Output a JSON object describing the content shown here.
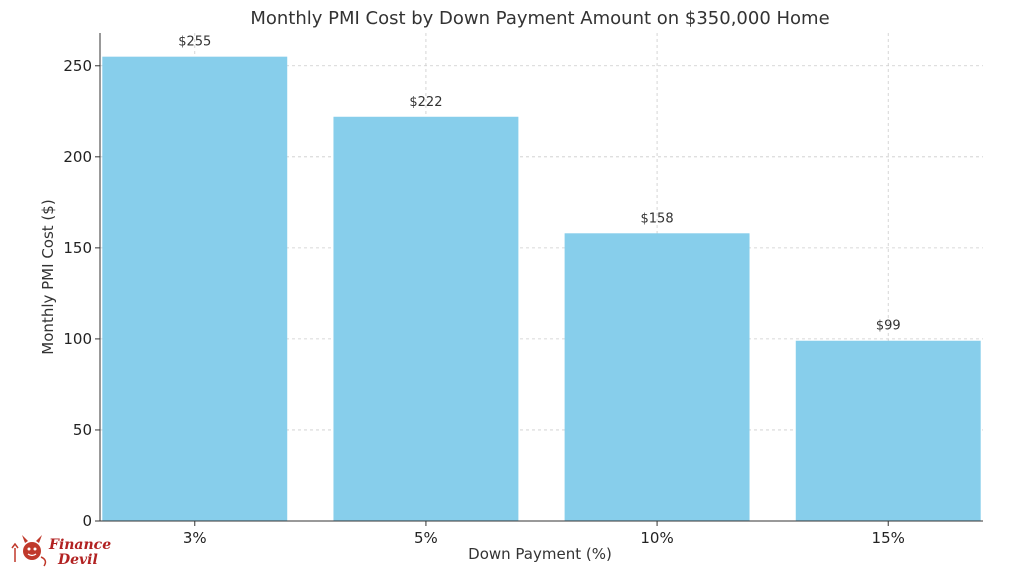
{
  "chart_data": {
    "type": "bar",
    "title": "Monthly PMI Cost by Down Payment Amount on $350,000 Home",
    "xlabel": "Down Payment (%)",
    "ylabel": "Monthly PMI Cost ($)",
    "categories": [
      "3%",
      "5%",
      "10%",
      "15%"
    ],
    "values": [
      255,
      222,
      158,
      99
    ],
    "data_labels": [
      "$255",
      "$222",
      "$158",
      "$99"
    ],
    "ylim": [
      0,
      268
    ],
    "yticks": [
      0,
      50,
      100,
      150,
      200,
      250
    ],
    "grid": true,
    "bar_color": "#87ceeb"
  },
  "logo": {
    "line1": "Finance",
    "line2": "Devil",
    "icon": "devil-icon",
    "color": "#b22222"
  }
}
